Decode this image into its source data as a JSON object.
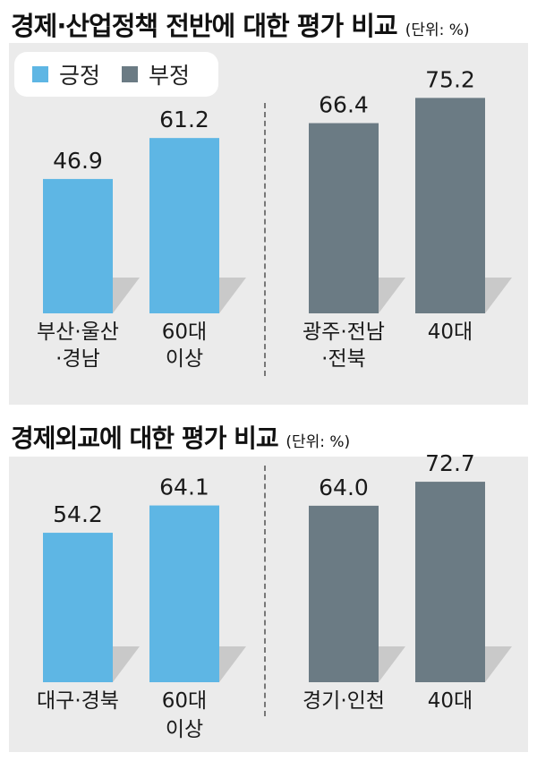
{
  "legend": {
    "positive": {
      "label": "긍정",
      "color": "#5eb6e4"
    },
    "negative": {
      "label": "부정",
      "color": "#6b7b84"
    }
  },
  "chart_data": [
    {
      "type": "bar",
      "title": "경제·산업정책 전반에 대한 평가 비교",
      "unit": "(단위: %)",
      "categories": [
        "부산·울산\n·경남",
        "60대\n이상",
        "광주·전남\n·전북",
        "40대"
      ],
      "values": [
        46.9,
        61.2,
        66.4,
        75.2
      ],
      "labels": [
        "46.9",
        "61.2",
        "66.4",
        "75.2"
      ],
      "series_of_bar": [
        "positive",
        "positive",
        "negative",
        "negative"
      ],
      "ylim": [
        0,
        100
      ],
      "legend": "top-left"
    },
    {
      "type": "bar",
      "title": "경제외교에 대한 평가 비교",
      "unit": "(단위: %)",
      "categories": [
        "대구·경북",
        "60대\n이상",
        "경기·인천",
        "40대"
      ],
      "values": [
        54.2,
        64.1,
        64.0,
        72.7
      ],
      "labels": [
        "54.2",
        "64.1",
        "64.0",
        "72.7"
      ],
      "series_of_bar": [
        "positive",
        "positive",
        "negative",
        "negative"
      ],
      "ylim": [
        0,
        100
      ]
    }
  ]
}
